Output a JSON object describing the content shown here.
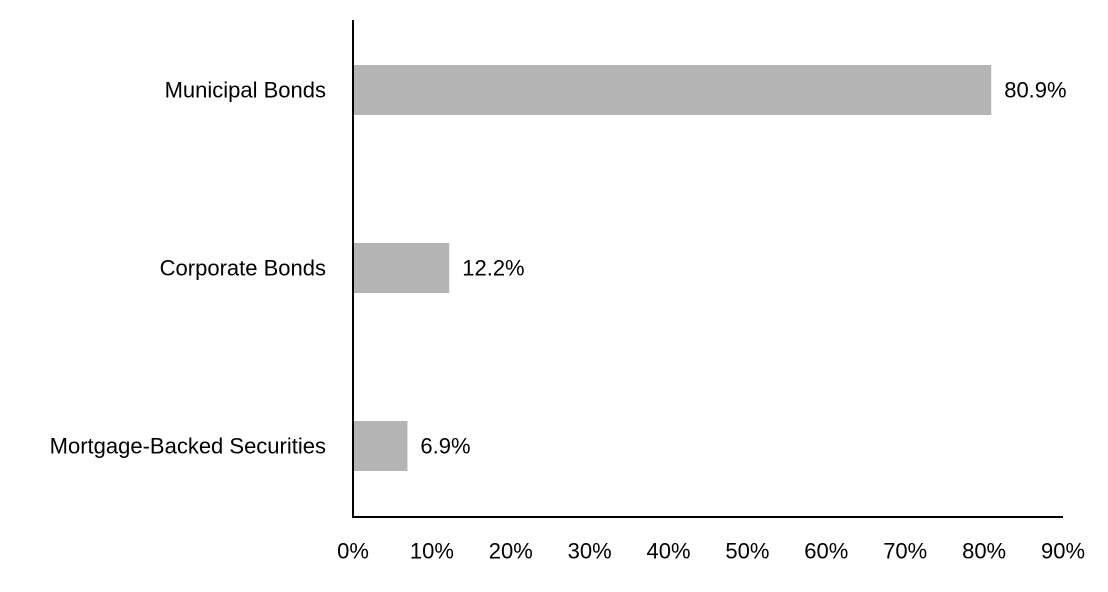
{
  "chart_data": {
    "type": "bar",
    "orientation": "horizontal",
    "categories": [
      "Municipal Bonds",
      "Corporate Bonds",
      "Mortgage-Backed Securities"
    ],
    "values": [
      80.9,
      12.2,
      6.9
    ],
    "data_labels": [
      "80.9%",
      "12.2%",
      "6.9%"
    ],
    "xlim": [
      0,
      90
    ],
    "xticks": [
      0,
      10,
      20,
      30,
      40,
      50,
      60,
      70,
      80,
      90
    ],
    "xtick_labels": [
      "0%",
      "10%",
      "20%",
      "30%",
      "40%",
      "50%",
      "60%",
      "70%",
      "80%",
      "90%"
    ],
    "title": "",
    "xlabel": "",
    "ylabel": "",
    "grid": false,
    "bar_color": "#b5b4b5",
    "axis_color": "#000000"
  }
}
